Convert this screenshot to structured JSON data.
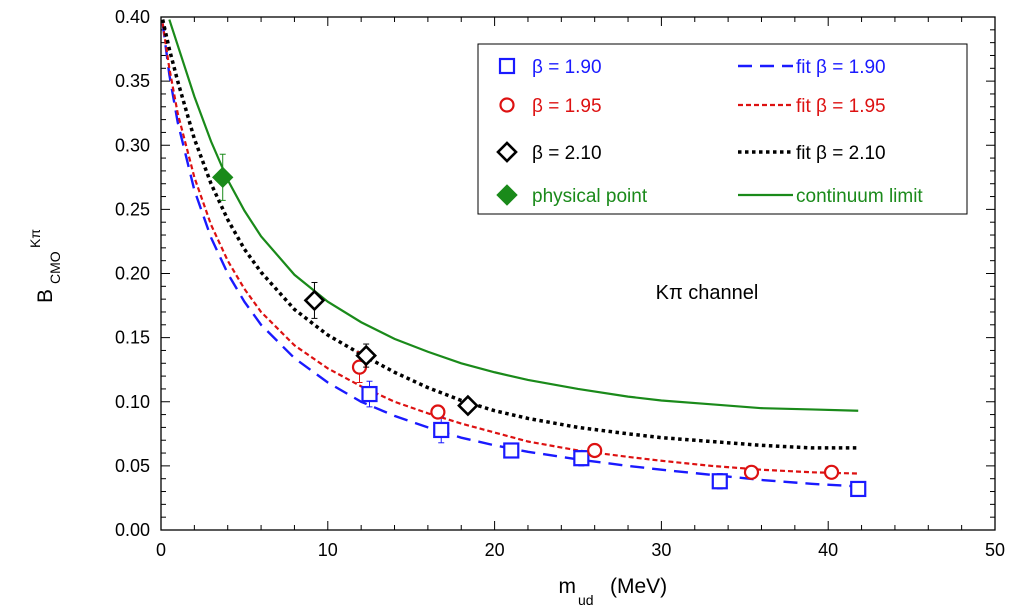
{
  "chart_data": {
    "type": "scatter",
    "title": "",
    "xlabel": {
      "main": "m",
      "sub": "ud",
      "unit": "(MeV)"
    },
    "ylabel": {
      "main": "B",
      "sub": "CMO",
      "sup": "Kπ"
    },
    "xlim": [
      0,
      50
    ],
    "ylim": [
      0,
      0.4
    ],
    "x_ticks": [
      "0",
      "10",
      "20",
      "30",
      "40",
      "50"
    ],
    "y_ticks": [
      "0.00",
      "0.05",
      "0.10",
      "0.15",
      "0.20",
      "0.25",
      "0.30",
      "0.35",
      "0.40"
    ],
    "annotation": "Kπ channel",
    "legend_position": "top-right",
    "series": [
      {
        "name": "β = 1.90",
        "marker": "square",
        "color": "#1a1aff",
        "points": [
          {
            "x": 12.5,
            "y": 0.106,
            "err": 0.01
          },
          {
            "x": 16.8,
            "y": 0.078,
            "err": 0.01
          },
          {
            "x": 21.0,
            "y": 0.062,
            "err": 0.005
          },
          {
            "x": 25.2,
            "y": 0.056,
            "err": 0.006
          },
          {
            "x": 33.5,
            "y": 0.038,
            "err": 0.006
          },
          {
            "x": 41.8,
            "y": 0.032,
            "err": 0.004
          }
        ]
      },
      {
        "name": "β = 1.95",
        "marker": "circle",
        "color": "#dd1111",
        "points": [
          {
            "x": 11.9,
            "y": 0.127,
            "err": 0.012
          },
          {
            "x": 16.6,
            "y": 0.092,
            "err": 0.005
          },
          {
            "x": 26.0,
            "y": 0.062,
            "err": 0.004
          },
          {
            "x": 35.4,
            "y": 0.045,
            "err": 0.003
          },
          {
            "x": 40.2,
            "y": 0.045,
            "err": 0.003
          }
        ]
      },
      {
        "name": "β = 2.10",
        "marker": "diamond",
        "color": "#000000",
        "points": [
          {
            "x": 9.2,
            "y": 0.179,
            "err": 0.014
          },
          {
            "x": 12.3,
            "y": 0.136,
            "err": 0.009
          },
          {
            "x": 18.4,
            "y": 0.097,
            "err": 0.005
          }
        ]
      },
      {
        "name": "physical point",
        "marker": "filled-diamond",
        "color": "#1a8a1a",
        "points": [
          {
            "x": 3.7,
            "y": 0.275,
            "err": 0.018
          }
        ]
      }
    ],
    "fits": [
      {
        "name": "fit β = 1.90",
        "style": "long-dash",
        "color": "#1a1aff",
        "points": [
          [
            0.1,
            0.395
          ],
          [
            0.5,
            0.355
          ],
          [
            1,
            0.318
          ],
          [
            2,
            0.265
          ],
          [
            3,
            0.228
          ],
          [
            4,
            0.2
          ],
          [
            5,
            0.178
          ],
          [
            6,
            0.16
          ],
          [
            8,
            0.134
          ],
          [
            10,
            0.115
          ],
          [
            12,
            0.1
          ],
          [
            14,
            0.089
          ],
          [
            16,
            0.08
          ],
          [
            18,
            0.072
          ],
          [
            20,
            0.066
          ],
          [
            22,
            0.061
          ],
          [
            25,
            0.055
          ],
          [
            28,
            0.05
          ],
          [
            30,
            0.047
          ],
          [
            33,
            0.043
          ],
          [
            36,
            0.039
          ],
          [
            39,
            0.036
          ],
          [
            41.8,
            0.034
          ]
        ]
      },
      {
        "name": "fit β = 1.95",
        "style": "short-dash",
        "color": "#dd1111",
        "points": [
          [
            0.1,
            0.395
          ],
          [
            0.5,
            0.36
          ],
          [
            1,
            0.325
          ],
          [
            2,
            0.275
          ],
          [
            3,
            0.238
          ],
          [
            4,
            0.21
          ],
          [
            5,
            0.188
          ],
          [
            6,
            0.17
          ],
          [
            8,
            0.144
          ],
          [
            10,
            0.126
          ],
          [
            12,
            0.112
          ],
          [
            14,
            0.1
          ],
          [
            16,
            0.091
          ],
          [
            18,
            0.083
          ],
          [
            20,
            0.076
          ],
          [
            22,
            0.069
          ],
          [
            25,
            0.062
          ],
          [
            28,
            0.057
          ],
          [
            30,
            0.054
          ],
          [
            33,
            0.05
          ],
          [
            36,
            0.047
          ],
          [
            39,
            0.045
          ],
          [
            41.8,
            0.044
          ]
        ]
      },
      {
        "name": "fit β = 2.10",
        "style": "dotted",
        "color": "#000000",
        "points": [
          [
            0.1,
            0.398
          ],
          [
            0.5,
            0.375
          ],
          [
            1,
            0.35
          ],
          [
            2,
            0.305
          ],
          [
            3,
            0.27
          ],
          [
            4,
            0.242
          ],
          [
            5,
            0.219
          ],
          [
            6,
            0.201
          ],
          [
            8,
            0.172
          ],
          [
            10,
            0.152
          ],
          [
            12,
            0.137
          ],
          [
            14,
            0.123
          ],
          [
            16,
            0.111
          ],
          [
            18,
            0.101
          ],
          [
            20,
            0.093
          ],
          [
            22,
            0.087
          ],
          [
            25,
            0.08
          ],
          [
            28,
            0.075
          ],
          [
            30,
            0.072
          ],
          [
            33,
            0.069
          ],
          [
            36,
            0.066
          ],
          [
            39,
            0.064
          ],
          [
            41.8,
            0.064
          ]
        ]
      },
      {
        "name": "continuum limit",
        "style": "solid",
        "color": "#1a8a1a",
        "points": [
          [
            0.5,
            0.398
          ],
          [
            1,
            0.378
          ],
          [
            2,
            0.338
          ],
          [
            3,
            0.303
          ],
          [
            4,
            0.273
          ],
          [
            5,
            0.249
          ],
          [
            6,
            0.229
          ],
          [
            8,
            0.199
          ],
          [
            10,
            0.178
          ],
          [
            12,
            0.162
          ],
          [
            14,
            0.149
          ],
          [
            16,
            0.139
          ],
          [
            18,
            0.13
          ],
          [
            20,
            0.123
          ],
          [
            22,
            0.117
          ],
          [
            25,
            0.11
          ],
          [
            28,
            0.104
          ],
          [
            30,
            0.101
          ],
          [
            33,
            0.098
          ],
          [
            36,
            0.095
          ],
          [
            39,
            0.094
          ],
          [
            41.8,
            0.093
          ]
        ]
      }
    ]
  }
}
